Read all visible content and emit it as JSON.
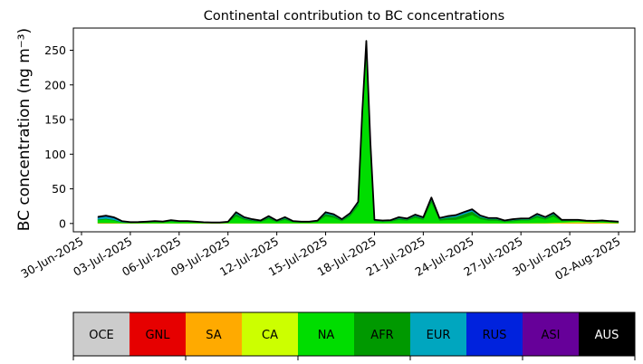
{
  "chart_data": {
    "type": "area",
    "stacked": true,
    "title": "Continental contribution to BC concentrations",
    "ylabel": "BC concentration (ng m⁻³)",
    "xlabel": "",
    "x_range": [
      "2025-06-29T12:00",
      "2025-08-03T00:00"
    ],
    "ylim": [
      -12,
      282
    ],
    "y_ticks": [
      0,
      50,
      100,
      150,
      200,
      250
    ],
    "x_ticks": [
      "30-Jun-2025",
      "03-Jul-2025",
      "06-Jul-2025",
      "09-Jul-2025",
      "12-Jul-2025",
      "15-Jul-2025",
      "18-Jul-2025",
      "21-Jul-2025",
      "24-Jul-2025",
      "27-Jul-2025",
      "30-Jul-2025",
      "02-Aug-2025"
    ],
    "grid": false,
    "total_line_color": "#000000",
    "times": [
      "2025-07-01T00:00",
      "2025-07-01T12:00",
      "2025-07-02T00:00",
      "2025-07-02T12:00",
      "2025-07-03T00:00",
      "2025-07-03T12:00",
      "2025-07-04T00:00",
      "2025-07-04T12:00",
      "2025-07-05T00:00",
      "2025-07-05T12:00",
      "2025-07-06T00:00",
      "2025-07-06T12:00",
      "2025-07-07T00:00",
      "2025-07-07T12:00",
      "2025-07-08T00:00",
      "2025-07-08T12:00",
      "2025-07-09T00:00",
      "2025-07-09T12:00",
      "2025-07-10T00:00",
      "2025-07-10T12:00",
      "2025-07-11T00:00",
      "2025-07-11T12:00",
      "2025-07-12T00:00",
      "2025-07-12T12:00",
      "2025-07-13T00:00",
      "2025-07-13T12:00",
      "2025-07-14T00:00",
      "2025-07-14T12:00",
      "2025-07-15T00:00",
      "2025-07-15T12:00",
      "2025-07-16T00:00",
      "2025-07-16T12:00",
      "2025-07-17T00:00",
      "2025-07-17T06:00",
      "2025-07-17T12:00",
      "2025-07-17T18:00",
      "2025-07-18T00:00",
      "2025-07-18T12:00",
      "2025-07-19T00:00",
      "2025-07-19T12:00",
      "2025-07-20T00:00",
      "2025-07-20T12:00",
      "2025-07-21T00:00",
      "2025-07-21T12:00",
      "2025-07-22T00:00",
      "2025-07-22T12:00",
      "2025-07-23T00:00",
      "2025-07-23T12:00",
      "2025-07-24T00:00",
      "2025-07-24T12:00",
      "2025-07-25T00:00",
      "2025-07-25T12:00",
      "2025-07-26T00:00",
      "2025-07-26T12:00",
      "2025-07-27T00:00",
      "2025-07-27T12:00",
      "2025-07-28T00:00",
      "2025-07-28T12:00",
      "2025-07-29T00:00",
      "2025-07-29T12:00",
      "2025-07-30T00:00",
      "2025-07-30T12:00",
      "2025-07-31T00:00",
      "2025-07-31T12:00",
      "2025-08-01T00:00",
      "2025-08-01T12:00",
      "2025-08-02T00:00"
    ],
    "series": [
      {
        "name": "OCE",
        "color": "#cccccc",
        "values": [
          0.3,
          0.3,
          0.2,
          0.1,
          0.1,
          0.1,
          0.1,
          0.1,
          0.1,
          0.1,
          0.1,
          0.1,
          0.1,
          0.1,
          0.1,
          0.1,
          0.1,
          0.1,
          0.1,
          0.1,
          0.1,
          0.1,
          0.1,
          0.1,
          0.1,
          0.1,
          0.1,
          0.1,
          0.1,
          0.1,
          0.1,
          0.1,
          0.1,
          0.1,
          0.1,
          0.1,
          0.1,
          0.1,
          0.1,
          0.1,
          0.1,
          0.1,
          0.1,
          0.1,
          0.1,
          0.1,
          0.1,
          0.1,
          0.1,
          0.1,
          0.1,
          0.1,
          0.1,
          0.1,
          0.1,
          0.1,
          0.1,
          0.1,
          0.1,
          0.1,
          0.1,
          0.1,
          0.1,
          0.1,
          0.1,
          0.1,
          0.1
        ]
      },
      {
        "name": "GNL",
        "color": "#e60000",
        "values": [
          0.1,
          0.1,
          0.1,
          0.1,
          0.1,
          0.1,
          0.1,
          0.1,
          0.1,
          0.1,
          0.1,
          0.1,
          0.1,
          0.1,
          0.1,
          0.1,
          0.1,
          0.1,
          0.1,
          0.1,
          0.1,
          0.1,
          0.1,
          0.1,
          0.1,
          0.1,
          0.1,
          0.1,
          0.1,
          0.1,
          0.1,
          0.1,
          0.1,
          0.1,
          0.1,
          0.1,
          0.1,
          0.1,
          0.1,
          0.1,
          0.1,
          0.1,
          0.1,
          0.1,
          0.1,
          0.1,
          0.1,
          0.1,
          0.1,
          0.1,
          0.1,
          0.1,
          0.1,
          0.1,
          0.1,
          0.1,
          0.1,
          0.1,
          0.1,
          0.1,
          0.1,
          0.1,
          0.1,
          0.1,
          0.1,
          0.1,
          0.1
        ]
      },
      {
        "name": "SA",
        "color": "#ffaa00",
        "values": [
          0.2,
          0.2,
          0.2,
          0.1,
          0.1,
          0.1,
          0.1,
          0.1,
          0.1,
          0.1,
          0.1,
          0.1,
          0.1,
          0.1,
          0.1,
          0.1,
          0.1,
          0.1,
          0.1,
          0.1,
          0.1,
          0.1,
          0.1,
          0.1,
          0.1,
          0.1,
          0.1,
          0.1,
          0.1,
          0.1,
          0.1,
          0.1,
          0.1,
          0.1,
          0.1,
          0.1,
          0.1,
          0.1,
          0.1,
          0.1,
          0.1,
          0.1,
          0.1,
          0.1,
          0.1,
          0.1,
          0.1,
          0.1,
          0.1,
          0.1,
          0.1,
          0.1,
          0.1,
          0.1,
          0.1,
          0.1,
          0.1,
          0.1,
          0.2,
          0.3,
          0.5,
          0.6,
          0.6,
          0.5,
          0.4,
          0.3,
          0.2
        ]
      },
      {
        "name": "CA",
        "color": "#ccff00",
        "values": [
          0.3,
          0.3,
          0.3,
          0.2,
          0.1,
          0.1,
          0.1,
          0.1,
          0.1,
          0.1,
          0.1,
          0.1,
          0.1,
          0.1,
          0.1,
          0.1,
          0.1,
          0.1,
          0.1,
          0.1,
          0.1,
          0.1,
          0.1,
          0.1,
          0.1,
          0.1,
          0.1,
          0.1,
          0.1,
          0.1,
          0.1,
          0.1,
          0.1,
          0.1,
          0.1,
          0.1,
          0.1,
          0.1,
          0.1,
          0.1,
          0.1,
          0.1,
          0.1,
          0.1,
          0.1,
          0.1,
          0.1,
          0.1,
          0.1,
          0.1,
          0.1,
          0.1,
          0.1,
          0.1,
          0.2,
          0.3,
          0.4,
          0.5,
          0.8,
          1.0,
          1.2,
          1.4,
          1.2,
          1.0,
          0.8,
          0.6,
          0.4
        ]
      },
      {
        "name": "NA",
        "color": "#00dd00",
        "values": [
          4.0,
          5.0,
          3.5,
          0.8,
          0.5,
          0.6,
          1.0,
          1.5,
          1.2,
          2.5,
          1.5,
          1.5,
          1.0,
          0.5,
          0.3,
          0.3,
          1.0,
          10.0,
          5.0,
          3.0,
          2.0,
          6.0,
          2.0,
          5.0,
          1.5,
          1.0,
          1.0,
          2.0,
          10.0,
          8.0,
          3.0,
          10.0,
          25.0,
          150.0,
          250.0,
          110.0,
          3.0,
          2.0,
          2.5,
          5.0,
          4.0,
          8.0,
          5.0,
          30.0,
          4.0,
          5.0,
          5.0,
          8.0,
          12.0,
          6.0,
          4.0,
          4.0,
          2.0,
          3.0,
          4.0,
          4.0,
          8.0,
          5.0,
          9.0,
          2.0,
          1.8,
          1.5,
          0.8,
          0.8,
          1.5,
          1.0,
          0.8
        ]
      },
      {
        "name": "AFR",
        "color": "#009900",
        "values": [
          1.0,
          1.2,
          1.0,
          0.5,
          0.3,
          0.4,
          0.6,
          0.8,
          0.6,
          1.0,
          0.8,
          0.8,
          0.6,
          0.4,
          0.3,
          0.3,
          0.5,
          3.5,
          2.0,
          1.5,
          1.0,
          2.5,
          1.0,
          2.0,
          0.8,
          0.6,
          0.6,
          1.0,
          3.5,
          3.0,
          1.5,
          2.5,
          3.5,
          6.0,
          8.0,
          4.0,
          1.0,
          1.0,
          1.0,
          2.0,
          1.5,
          2.5,
          2.0,
          4.0,
          2.0,
          3.0,
          4.0,
          5.0,
          5.0,
          3.0,
          2.0,
          2.0,
          1.0,
          1.5,
          1.5,
          1.5,
          3.0,
          2.0,
          3.0,
          1.0,
          0.8,
          0.8,
          0.6,
          0.6,
          0.8,
          0.6,
          0.5
        ]
      },
      {
        "name": "EUR",
        "color": "#00a6bf",
        "values": [
          2.5,
          3.0,
          2.5,
          1.0,
          0.5,
          0.4,
          0.4,
          0.5,
          0.4,
          0.6,
          0.5,
          0.5,
          0.4,
          0.3,
          0.2,
          0.2,
          0.3,
          1.5,
          1.0,
          0.8,
          0.6,
          1.0,
          0.6,
          1.0,
          0.5,
          0.4,
          0.4,
          0.5,
          1.5,
          1.2,
          0.8,
          1.2,
          1.5,
          2.5,
          3.0,
          2.0,
          0.6,
          0.6,
          0.6,
          1.0,
          0.8,
          1.2,
          1.0,
          2.0,
          1.0,
          1.5,
          1.8,
          2.0,
          2.0,
          1.5,
          1.0,
          1.0,
          0.6,
          0.8,
          0.8,
          0.8,
          1.5,
          1.0,
          1.5,
          0.6,
          0.5,
          0.5,
          0.4,
          0.4,
          0.5,
          0.4,
          0.3
        ]
      },
      {
        "name": "RUS",
        "color": "#0022dd",
        "values": [
          0.5,
          0.6,
          0.5,
          0.2,
          0.1,
          0.1,
          0.1,
          0.1,
          0.1,
          0.1,
          0.1,
          0.1,
          0.1,
          0.1,
          0.1,
          0.1,
          0.1,
          0.4,
          0.3,
          0.2,
          0.1,
          0.3,
          0.1,
          0.3,
          0.1,
          0.1,
          0.1,
          0.1,
          0.4,
          0.3,
          0.2,
          0.3,
          0.4,
          0.8,
          1.0,
          0.6,
          0.1,
          0.1,
          0.1,
          0.3,
          0.2,
          0.3,
          0.2,
          0.5,
          0.2,
          0.3,
          0.4,
          0.5,
          0.5,
          0.3,
          0.2,
          0.2,
          0.1,
          0.2,
          0.2,
          0.2,
          0.3,
          0.2,
          0.3,
          0.1,
          0.1,
          0.1,
          0.1,
          0.1,
          0.1,
          0.1,
          0.1
        ]
      },
      {
        "name": "ASI",
        "color": "#660099",
        "values": [
          0.5,
          0.6,
          0.5,
          0.2,
          0.1,
          0.1,
          0.1,
          0.1,
          0.1,
          0.1,
          0.1,
          0.1,
          0.1,
          0.1,
          0.1,
          0.1,
          0.1,
          0.4,
          0.3,
          0.2,
          0.1,
          0.3,
          0.1,
          0.3,
          0.1,
          0.1,
          0.1,
          0.1,
          0.4,
          0.3,
          0.2,
          0.3,
          0.4,
          0.8,
          1.0,
          0.6,
          0.1,
          0.1,
          0.1,
          0.3,
          0.2,
          0.3,
          0.2,
          0.5,
          0.2,
          0.3,
          0.4,
          0.5,
          0.5,
          0.3,
          0.2,
          0.2,
          0.1,
          0.2,
          0.2,
          0.2,
          0.3,
          0.2,
          0.3,
          0.1,
          0.1,
          0.1,
          0.1,
          0.1,
          0.1,
          0.1,
          0.1
        ]
      },
      {
        "name": "AUS",
        "color": "#000000",
        "values": [
          0.1,
          0.1,
          0.1,
          0.1,
          0.1,
          0.1,
          0.1,
          0.1,
          0.1,
          0.1,
          0.1,
          0.1,
          0.1,
          0.1,
          0.1,
          0.1,
          0.1,
          0.1,
          0.1,
          0.1,
          0.1,
          0.1,
          0.1,
          0.1,
          0.1,
          0.1,
          0.1,
          0.1,
          0.1,
          0.1,
          0.1,
          0.1,
          0.1,
          0.1,
          0.1,
          0.1,
          0.1,
          0.1,
          0.1,
          0.1,
          0.1,
          0.1,
          0.1,
          0.1,
          0.1,
          0.1,
          0.1,
          0.1,
          0.1,
          0.1,
          0.1,
          0.1,
          0.1,
          0.1,
          0.1,
          0.1,
          0.1,
          0.1,
          0.1,
          0.1,
          0.1,
          0.1,
          0.1,
          0.1,
          0.1,
          0.1,
          0.1
        ]
      }
    ],
    "legend": {
      "placement": "bottom",
      "entries": [
        {
          "label": "OCE",
          "color": "#cccccc",
          "text_color": "#000000"
        },
        {
          "label": "GNL",
          "color": "#e60000",
          "text_color": "#000000"
        },
        {
          "label": "SA",
          "color": "#ffaa00",
          "text_color": "#000000"
        },
        {
          "label": "CA",
          "color": "#ccff00",
          "text_color": "#000000"
        },
        {
          "label": "NA",
          "color": "#00dd00",
          "text_color": "#000000"
        },
        {
          "label": "AFR",
          "color": "#009900",
          "text_color": "#000000"
        },
        {
          "label": "EUR",
          "color": "#00a6bf",
          "text_color": "#000000"
        },
        {
          "label": "RUS",
          "color": "#0022dd",
          "text_color": "#000000"
        },
        {
          "label": "ASI",
          "color": "#660099",
          "text_color": "#000000"
        },
        {
          "label": "AUS",
          "color": "#000000",
          "text_color": "#ffffff"
        }
      ]
    }
  }
}
